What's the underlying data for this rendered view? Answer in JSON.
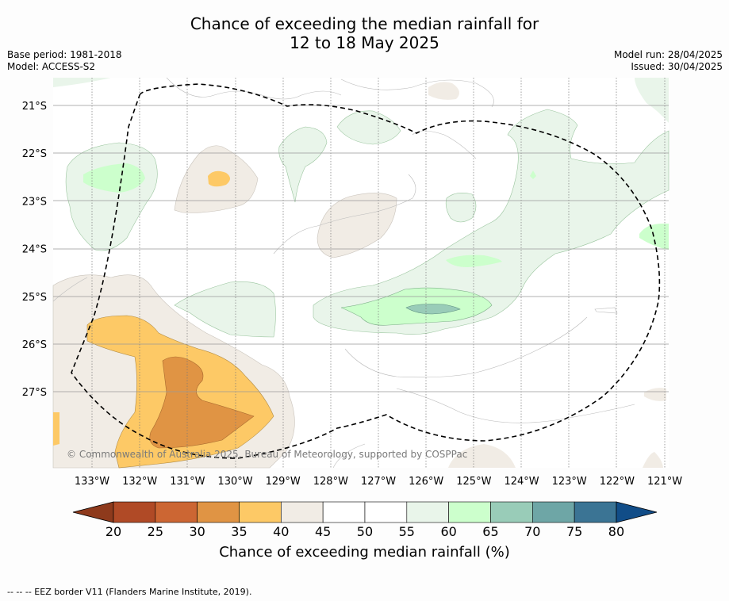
{
  "title_line1": "Chance of exceeding the median rainfall for",
  "title_line2": "12 to 18 May 2025",
  "base_period": "Base period: 1981-2018",
  "model": "Model: ACCESS-S2",
  "model_run": "Model run: 28/04/2025",
  "issued": "Issued: 30/04/2025",
  "copyright": "© Commonwealth of Australia 2025, Bureau of Meteorology, supported by COSPPac",
  "lon_labels": [
    "133°W",
    "132°W",
    "131°W",
    "130°W",
    "129°W",
    "128°W",
    "127°W",
    "126°W",
    "125°W",
    "124°W",
    "123°W",
    "122°W",
    "121°W"
  ],
  "lat_labels": [
    "21°S",
    "22°S",
    "23°S",
    "24°S",
    "25°S",
    "26°S",
    "27°S"
  ],
  "colorbar": {
    "label": "Chance of exceeding median rainfall (%)",
    "ticks": [
      "20",
      "25",
      "30",
      "35",
      "40",
      "45",
      "50",
      "55",
      "60",
      "65",
      "70",
      "75",
      "80"
    ],
    "colors": [
      "#8e3a1c",
      "#b04a26",
      "#cc6633",
      "#e09444",
      "#fdc966",
      "#f1ece5",
      "#ffffff",
      "#ffffff",
      "#e9f5ea",
      "#ccffcc",
      "#99ccb8",
      "#6ea6a6",
      "#3b7494",
      "#114d88"
    ]
  },
  "legend_note": "--  --  -- EEZ border V11 (Flanders Marine Institute, 2019)."
}
